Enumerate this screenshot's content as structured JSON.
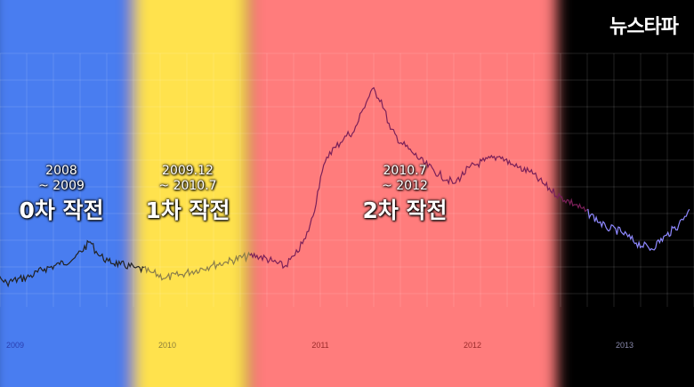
{
  "logo": "뉴스타파",
  "periods": [
    {
      "id": "p0",
      "date1": "2008",
      "date2": "~ 2009",
      "title": "0차 작전",
      "color": "#4a7df0"
    },
    {
      "id": "p1",
      "date1": "2009.12",
      "date2": "~ 2010.7",
      "title": "1차 작전",
      "color": "#ffe24d"
    },
    {
      "id": "p2",
      "date1": "2010.7",
      "date2": "~ 2012",
      "title": "2차 작전",
      "color": "#ff7b7b"
    }
  ],
  "chart_data": {
    "type": "line",
    "x_tick_labels": [
      "2009",
      "2010",
      "2011",
      "2012",
      "2013"
    ],
    "grid": true,
    "x": [
      2008.65,
      2008.78,
      2008.95,
      2009.1,
      2009.2,
      2009.3,
      2009.4,
      2009.5,
      2009.55,
      2009.62,
      2009.7,
      2009.8,
      2009.9,
      2010.0,
      2010.1,
      2010.2,
      2010.3,
      2010.4,
      2010.5,
      2010.6,
      2010.7,
      2010.78,
      2010.85,
      2010.92,
      2010.97,
      2011.02,
      2011.08,
      2011.12,
      2011.18,
      2011.24,
      2011.3,
      2011.36,
      2011.42,
      2011.48,
      2011.55,
      2011.62,
      2011.7,
      2011.8,
      2011.9,
      2012.0,
      2012.1,
      2012.2,
      2012.3,
      2012.4,
      2012.5,
      2012.6,
      2012.7,
      2012.8,
      2012.9,
      2013.0,
      2013.1,
      2013.2,
      2013.3,
      2013.38,
      2013.45
    ],
    "y": [
      23,
      19,
      6,
      11,
      18,
      22,
      28,
      42,
      31,
      25,
      22,
      19,
      15,
      10,
      13,
      17,
      21,
      24,
      28,
      30,
      25,
      20,
      30,
      45,
      65,
      100,
      122,
      126,
      136,
      140,
      160,
      178,
      168,
      142,
      130,
      122,
      112,
      102,
      94,
      108,
      114,
      118,
      109,
      104,
      92,
      82,
      75,
      66,
      55,
      51,
      41,
      36,
      48,
      57,
      71
    ],
    "ylim": [
      0,
      200
    ]
  }
}
